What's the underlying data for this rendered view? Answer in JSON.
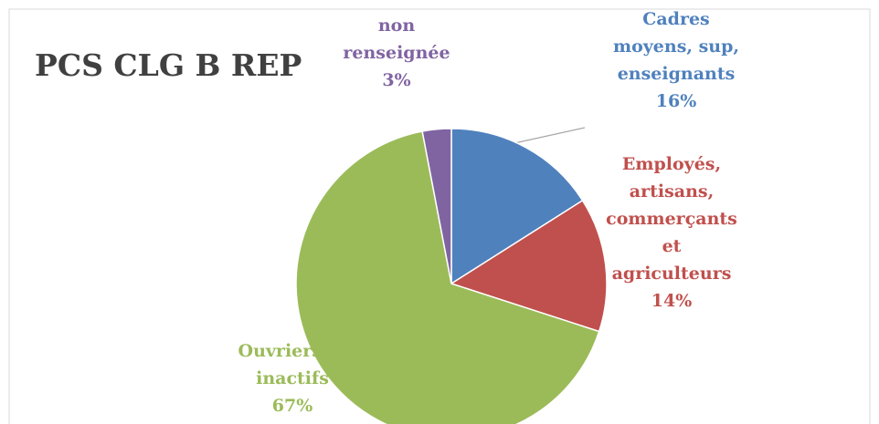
{
  "chart_data": {
    "type": "pie",
    "title": "PCS CLG B REP",
    "categories": [
      "Cadres moyens, sup, enseignants",
      "Employés, artisans, commerçants et agriculteurs",
      "Ouvriers et inactifs",
      "non renseignée"
    ],
    "values": [
      16,
      14,
      67,
      3
    ],
    "value_labels": [
      "16%",
      "14%",
      "67%",
      "3%"
    ],
    "colors": [
      "#4f81bd",
      "#c0504d",
      "#9bbb59",
      "#8064a2"
    ]
  }
}
